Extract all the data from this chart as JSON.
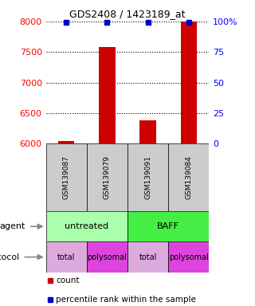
{
  "title": "GDS2408 / 1423189_at",
  "samples": [
    "GSM139087",
    "GSM139079",
    "GSM139091",
    "GSM139084"
  ],
  "counts": [
    6050,
    7580,
    6380,
    8000
  ],
  "percentile_ranks": [
    99,
    99,
    99,
    99
  ],
  "ylim": [
    6000,
    8000
  ],
  "yticks": [
    6000,
    6500,
    7000,
    7500,
    8000
  ],
  "y2ticks": [
    0,
    25,
    50,
    75,
    100
  ],
  "y2ticklabels": [
    "0",
    "25",
    "50",
    "75",
    "100%"
  ],
  "bar_color": "#cc0000",
  "dot_color": "#0000cc",
  "bar_width": 0.4,
  "agent_colors": [
    "#aaffaa",
    "#44ee44"
  ],
  "agent_labels": [
    "untreated",
    "BAFF"
  ],
  "protocol_labels": [
    "total",
    "polysomal",
    "total",
    "polysomal"
  ],
  "protocol_colors": [
    "#ddaadd",
    "#dd44dd",
    "#ddaadd",
    "#dd44dd"
  ],
  "sample_box_color": "#cccccc",
  "legend_count_color": "#cc0000",
  "legend_pct_color": "#0000cc"
}
